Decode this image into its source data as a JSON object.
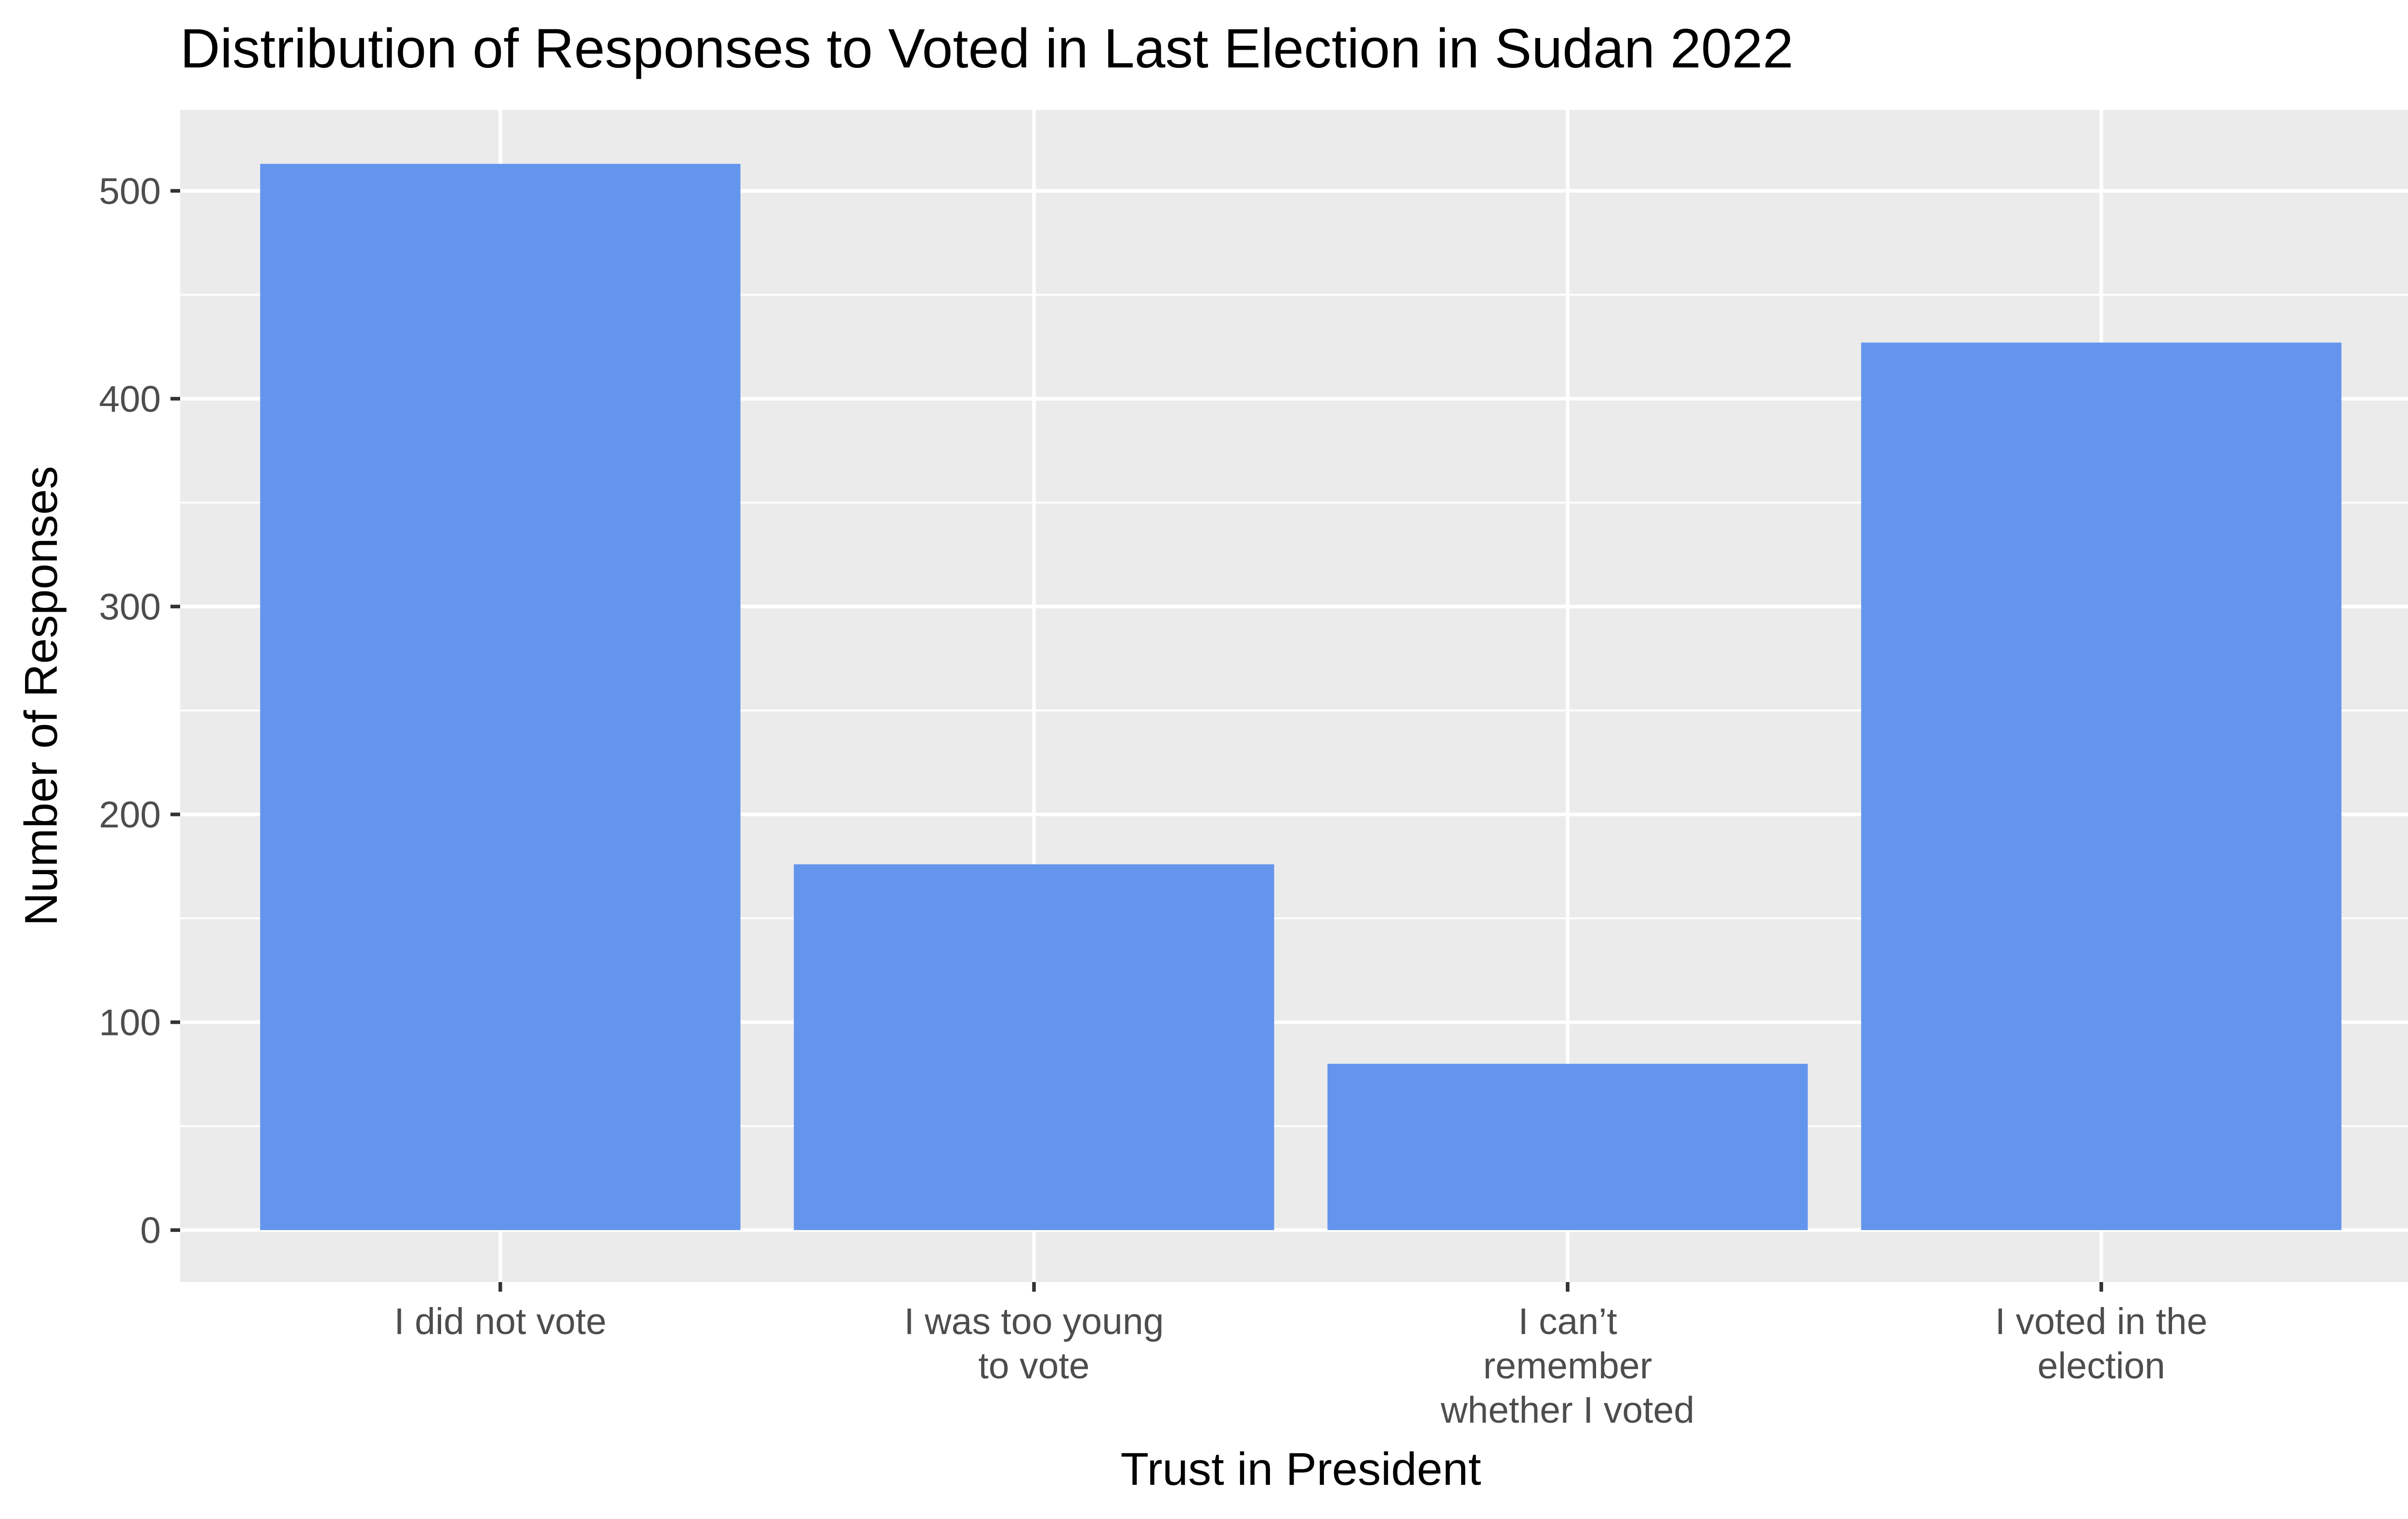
{
  "chart_data": {
    "type": "bar",
    "title": "Distribution of Responses to Voted in Last Election in Sudan 2022",
    "xlabel": "Trust in President",
    "ylabel": "Number of Responses",
    "categories": [
      [
        "I did not vote"
      ],
      [
        "I was too young",
        "to vote"
      ],
      [
        "I can’t",
        "remember",
        "whether I voted"
      ],
      [
        "I voted in the",
        "election"
      ]
    ],
    "values": [
      513,
      176,
      80,
      427
    ],
    "ylim": [
      -25,
      539
    ],
    "yticks": [
      0,
      100,
      200,
      300,
      400,
      500
    ],
    "yticks_minor": [
      50,
      150,
      250,
      350,
      450
    ],
    "grid": true,
    "legend": "none",
    "bar_color": "#6495ED",
    "panel_color": "#EBEBEB"
  }
}
